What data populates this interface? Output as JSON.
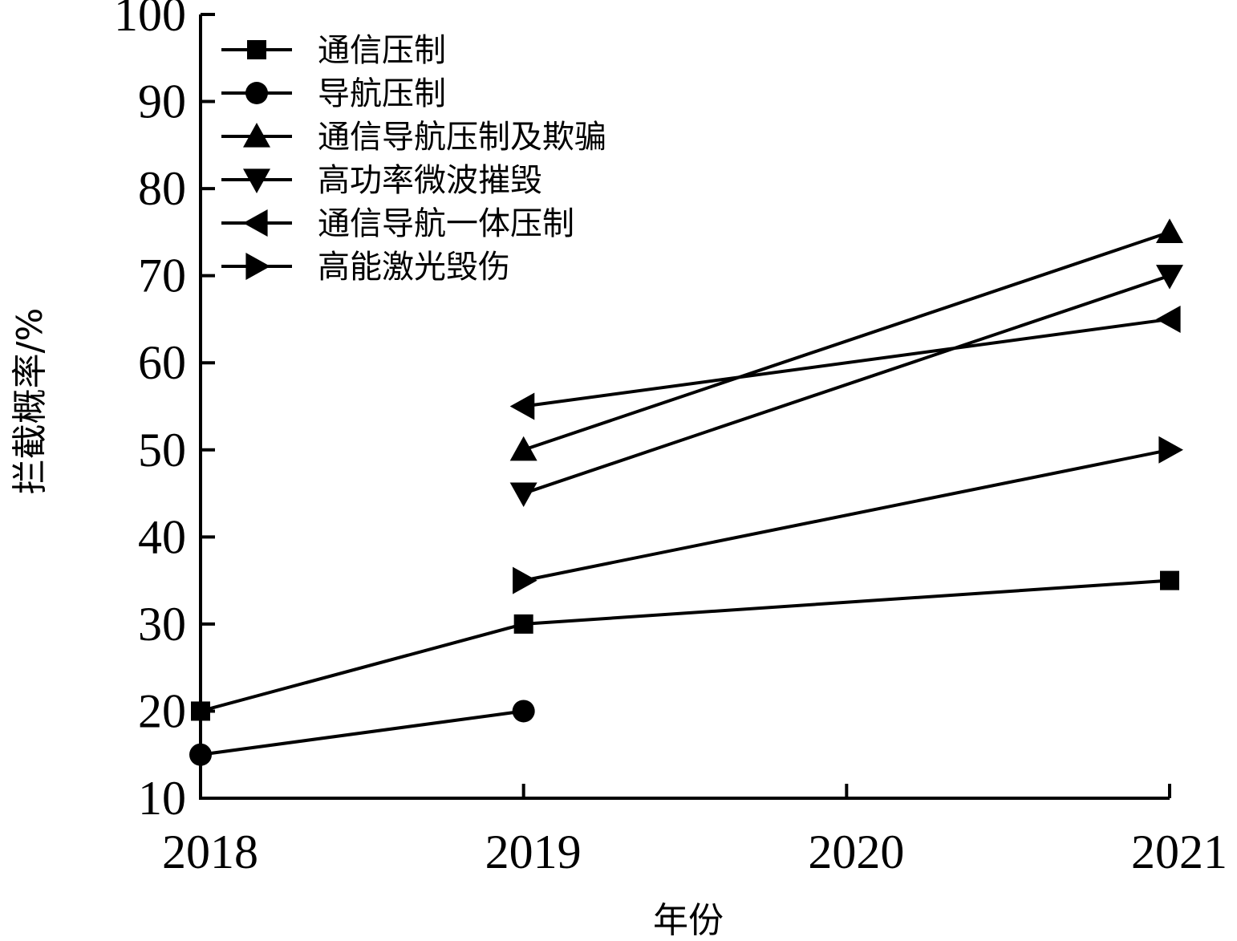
{
  "chart_data": {
    "type": "line",
    "x": [
      2018,
      2019,
      2020,
      2021
    ],
    "x_tick_labels": [
      "2018",
      "2019",
      "2020",
      "2021"
    ],
    "xlim": [
      2018,
      2021
    ],
    "ylim": [
      10,
      100
    ],
    "y_ticks": [
      10,
      20,
      30,
      40,
      50,
      60,
      70,
      80,
      90,
      100
    ],
    "y_tick_labels": [
      "10",
      "20",
      "30",
      "40",
      "50",
      "60",
      "70",
      "80",
      "90",
      "100"
    ],
    "xlabel": "年份",
    "ylabel": "拦截概率/%",
    "grid": false,
    "legend_position": "top-left",
    "series": [
      {
        "name": "通信压制",
        "marker": "square",
        "points": [
          [
            2018,
            20
          ],
          [
            2019,
            30
          ],
          [
            2021,
            35
          ]
        ]
      },
      {
        "name": "导航压制",
        "marker": "circle",
        "points": [
          [
            2018,
            15
          ],
          [
            2019,
            20
          ]
        ]
      },
      {
        "name": "通信导航压制及欺骗",
        "marker": "triangle-up",
        "points": [
          [
            2019,
            50
          ],
          [
            2021,
            75
          ]
        ]
      },
      {
        "name": "高功率微波摧毁",
        "marker": "triangle-down",
        "points": [
          [
            2019,
            45
          ],
          [
            2021,
            70
          ]
        ]
      },
      {
        "name": "通信导航一体压制",
        "marker": "triangle-left",
        "points": [
          [
            2019,
            55
          ],
          [
            2021,
            65
          ]
        ]
      },
      {
        "name": "高能激光毁伤",
        "marker": "triangle-right",
        "points": [
          [
            2019,
            35
          ],
          [
            2021,
            50
          ]
        ]
      }
    ]
  }
}
